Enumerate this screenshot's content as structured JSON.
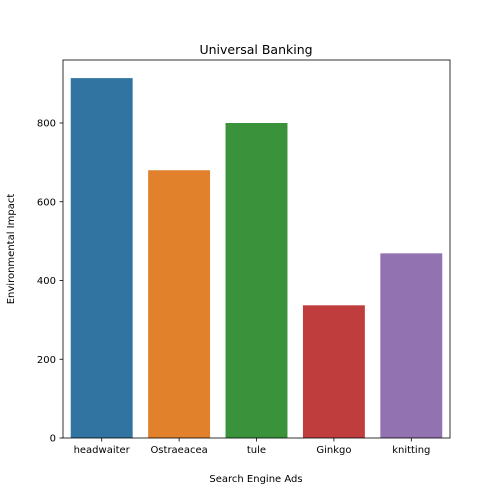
{
  "chart_data": {
    "type": "bar",
    "title": "Universal Banking",
    "xlabel": "Search Engine Ads",
    "ylabel": "Environmental Impact",
    "categories": [
      "headwaiter",
      "Ostraeacea",
      "tule",
      "Ginkgo",
      "knitting"
    ],
    "values": [
      914,
      680,
      800,
      337,
      469
    ],
    "colors": [
      "#3274a1",
      "#e1812c",
      "#3a923a",
      "#c03d3e",
      "#9372b2"
    ],
    "ylim": [
      0,
      960
    ],
    "yticks": [
      0,
      200,
      400,
      600,
      800
    ],
    "grid": false,
    "legend": "none"
  }
}
